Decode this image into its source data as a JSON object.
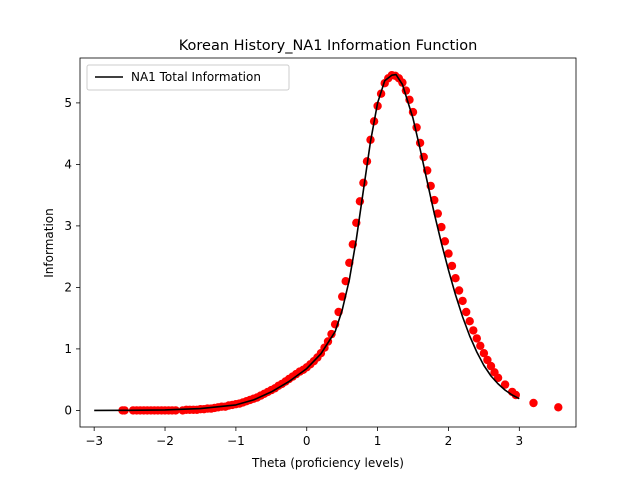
{
  "chart_data": {
    "type": "scatter",
    "title": "Korean History_NA1 Information Function",
    "xlabel": "Theta (proficiency levels)",
    "ylabel": "Information",
    "xlim": [
      -3.2,
      3.8
    ],
    "ylim": [
      -0.27,
      5.73
    ],
    "xticks": [
      -3,
      -2,
      -1,
      0,
      1,
      2,
      3
    ],
    "yticks": [
      0,
      1,
      2,
      3,
      4,
      5
    ],
    "xtick_labels": [
      "−3",
      "−2",
      "−1",
      "0",
      "1",
      "2",
      "3"
    ],
    "ytick_labels": [
      "0",
      "1",
      "2",
      "3",
      "4",
      "5"
    ],
    "grid": false,
    "legend": {
      "placement": "top-left",
      "entries": [
        {
          "label": "NA1 Total Information",
          "color": "#000000",
          "kind": "line"
        }
      ]
    },
    "curve": {
      "name": "NA1 Total Information",
      "color": "#000000",
      "x_start": -3.0,
      "x_end": 3.0,
      "peak_theta": 1.26,
      "peak_info": 5.46,
      "x": [
        -3.0,
        -2.5,
        -2.0,
        -1.5,
        -1.0,
        -0.75,
        -0.5,
        -0.25,
        0.0,
        0.2,
        0.4,
        0.5,
        0.6,
        0.7,
        0.8,
        0.9,
        1.0,
        1.1,
        1.2,
        1.26,
        1.35,
        1.5,
        1.6,
        1.7,
        1.8,
        1.9,
        2.0,
        2.1,
        2.2,
        2.3,
        2.4,
        2.5,
        2.6,
        2.7,
        2.8,
        2.9,
        3.0
      ],
      "y": [
        0.0,
        0.002,
        0.008,
        0.03,
        0.09,
        0.17,
        0.3,
        0.47,
        0.68,
        0.92,
        1.28,
        1.63,
        2.12,
        2.78,
        3.58,
        4.37,
        5.0,
        5.36,
        5.45,
        5.46,
        5.3,
        4.75,
        4.25,
        3.72,
        3.2,
        2.72,
        2.28,
        1.88,
        1.52,
        1.21,
        0.95,
        0.73,
        0.56,
        0.43,
        0.33,
        0.25,
        0.19
      ]
    },
    "points": {
      "name": "",
      "color": "#ff0000",
      "x": [
        -2.6,
        -2.57,
        -2.45,
        -2.4,
        -2.35,
        -2.3,
        -2.25,
        -2.2,
        -2.15,
        -2.1,
        -2.05,
        -2.0,
        -1.95,
        -1.9,
        -1.85,
        -1.75,
        -1.7,
        -1.65,
        -1.6,
        -1.55,
        -1.5,
        -1.45,
        -1.4,
        -1.35,
        -1.3,
        -1.25,
        -1.2,
        -1.15,
        -1.1,
        -1.05,
        -1.0,
        -0.95,
        -0.9,
        -0.85,
        -0.8,
        -0.75,
        -0.7,
        -0.65,
        -0.6,
        -0.55,
        -0.5,
        -0.45,
        -0.4,
        -0.35,
        -0.3,
        -0.25,
        -0.2,
        -0.15,
        -0.1,
        -0.05,
        0.0,
        0.05,
        0.1,
        0.15,
        0.2,
        0.25,
        0.3,
        0.35,
        0.4,
        0.45,
        0.5,
        0.55,
        0.6,
        0.65,
        0.7,
        0.75,
        0.8,
        0.85,
        0.9,
        0.95,
        1.0,
        1.05,
        1.1,
        1.15,
        1.2,
        1.25,
        1.3,
        1.35,
        1.4,
        1.45,
        1.5,
        1.55,
        1.6,
        1.65,
        1.7,
        1.75,
        1.8,
        1.85,
        1.9,
        1.95,
        2.0,
        2.05,
        2.1,
        2.15,
        2.2,
        2.25,
        2.3,
        2.35,
        2.4,
        2.45,
        2.5,
        2.55,
        2.6,
        2.65,
        2.7,
        2.8,
        2.9,
        2.95,
        3.2,
        3.55
      ],
      "y": [
        0.0,
        0.0,
        0.0,
        0.0,
        0.0,
        0.0,
        0.0,
        0.0,
        0.0,
        0.0,
        0.0,
        0.0,
        0.0,
        0.0,
        0.0,
        0.0,
        0.01,
        0.01,
        0.01,
        0.01,
        0.02,
        0.02,
        0.03,
        0.03,
        0.04,
        0.05,
        0.06,
        0.06,
        0.08,
        0.09,
        0.1,
        0.11,
        0.13,
        0.15,
        0.17,
        0.19,
        0.21,
        0.24,
        0.27,
        0.3,
        0.33,
        0.36,
        0.4,
        0.43,
        0.47,
        0.51,
        0.55,
        0.59,
        0.63,
        0.66,
        0.7,
        0.75,
        0.8,
        0.86,
        0.93,
        1.02,
        1.12,
        1.24,
        1.4,
        1.6,
        1.85,
        2.1,
        2.4,
        2.7,
        3.05,
        3.4,
        3.7,
        4.05,
        4.4,
        4.7,
        4.95,
        5.15,
        5.32,
        5.4,
        5.45,
        5.44,
        5.4,
        5.33,
        5.2,
        5.05,
        4.85,
        4.6,
        4.35,
        4.12,
        3.9,
        3.65,
        3.42,
        3.2,
        2.98,
        2.75,
        2.55,
        2.35,
        2.15,
        1.95,
        1.78,
        1.6,
        1.45,
        1.3,
        1.17,
        1.05,
        0.93,
        0.82,
        0.72,
        0.62,
        0.53,
        0.42,
        0.3,
        0.25,
        0.12,
        0.05
      ]
    }
  }
}
